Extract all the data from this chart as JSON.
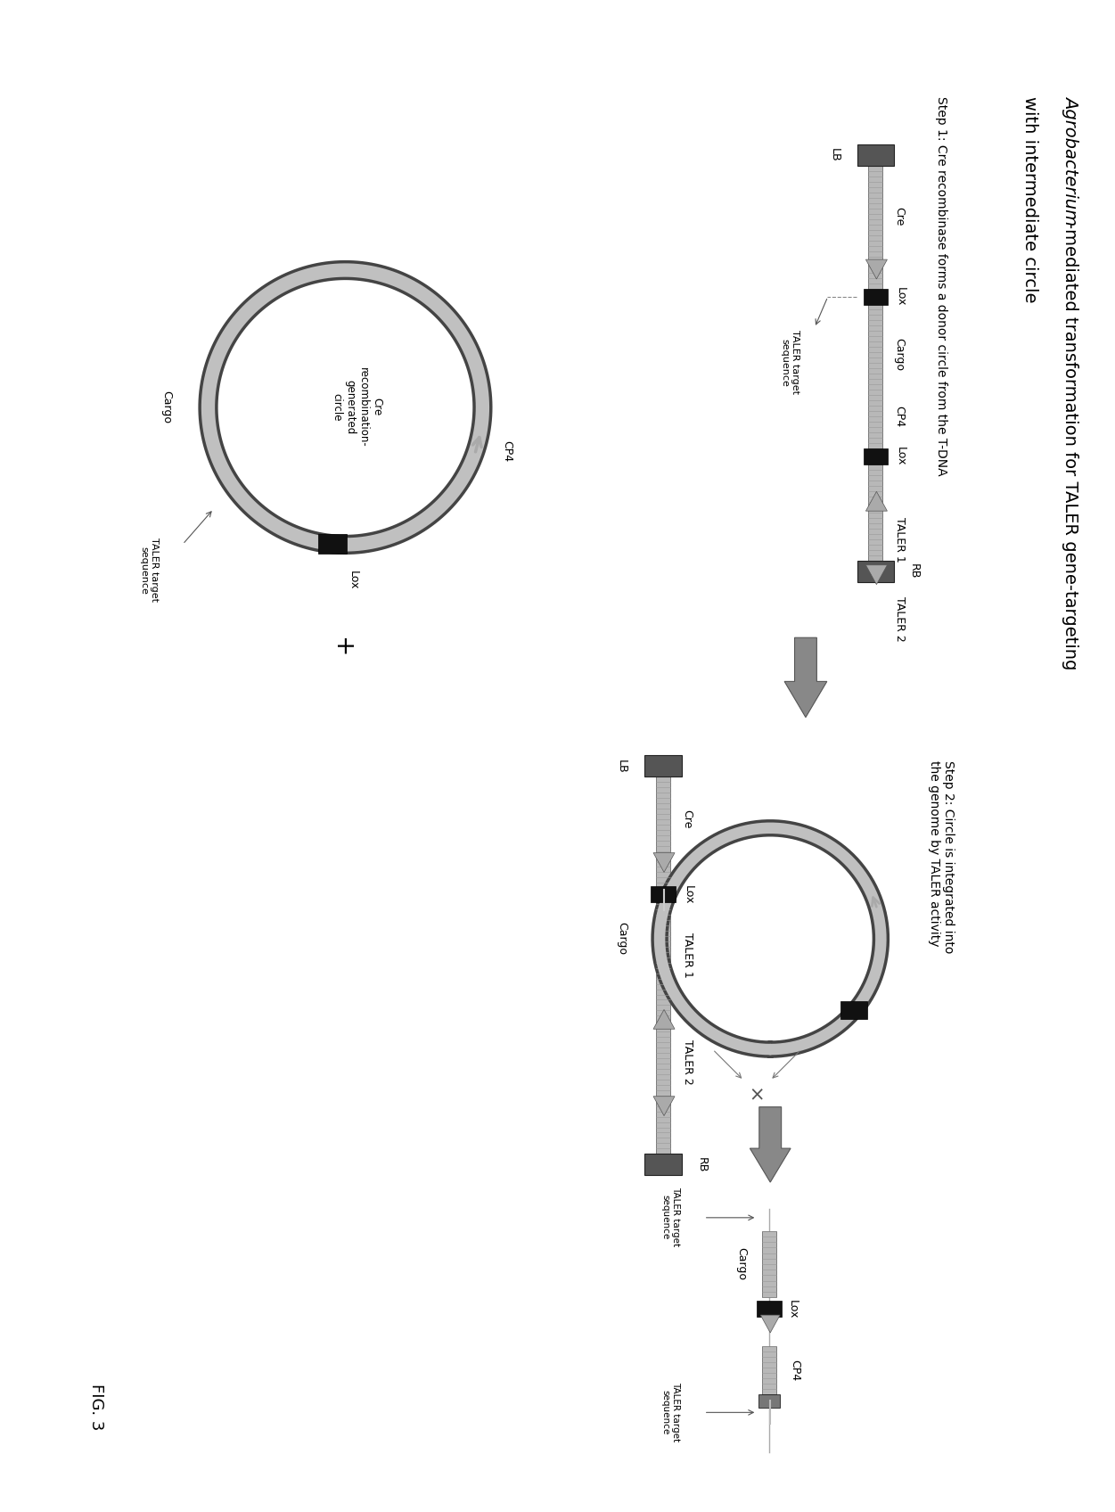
{
  "title_italic": "Agrobacterium",
  "title_rest": "-mediated transformation for TALER gene-targeting",
  "title_line2": "with intermediate circle",
  "step1_label": "Step 1: Cre recombinase forms a donor circle from the T-DNA",
  "step2_label": "Step 2: Circle is integrated into\nthe genome by TALER activity",
  "fig_label": "FIG. 3",
  "strand_color": "#aaaaaa",
  "strand_edge": "#555555",
  "dark_block_color": "#111111",
  "lb_rb_color": "#555555",
  "bg_color": "#ffffff",
  "arrow_fill": "#aaaaaa",
  "arrow_edge": "#555555",
  "big_arrow_fill": "#888888",
  "circle_color": "#aaaaaa"
}
